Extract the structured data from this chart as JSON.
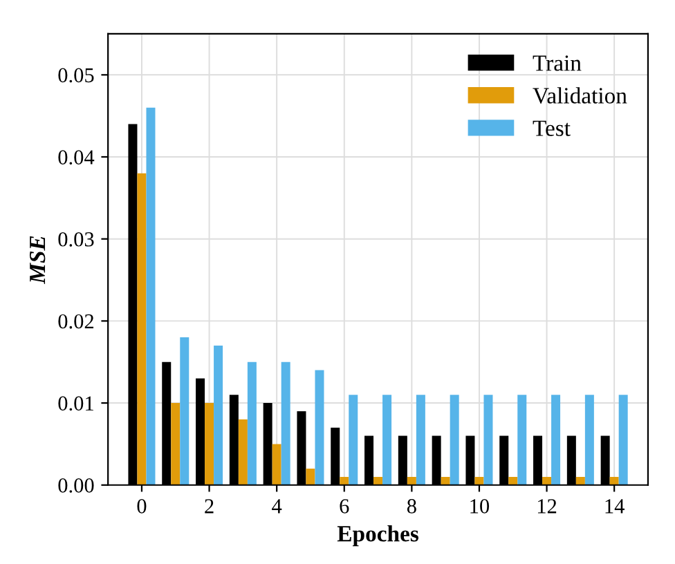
{
  "chart_data": {
    "type": "bar",
    "xlabel": "Epoches",
    "ylabel": "MSE",
    "x": [
      0,
      1,
      2,
      3,
      4,
      5,
      6,
      7,
      8,
      9,
      10,
      11,
      12,
      13,
      14
    ],
    "xlim": [
      -1,
      15
    ],
    "xticks": [
      0,
      2,
      4,
      6,
      8,
      10,
      12,
      14
    ],
    "ylim": [
      0,
      0.055
    ],
    "yticks": [
      {
        "value": 0,
        "label": "0.00"
      },
      {
        "value": 0.01,
        "label": "0.01"
      },
      {
        "value": 0.02,
        "label": "0.02"
      },
      {
        "value": 0.03,
        "label": "0.03"
      },
      {
        "value": 0.04,
        "label": "0.04"
      },
      {
        "value": 0.05,
        "label": "0.05"
      }
    ],
    "grid": true,
    "legend": "top right",
    "series": [
      {
        "name": "Train",
        "color": "#000000",
        "values": [
          0.044,
          0.015,
          0.013,
          0.011,
          0.01,
          0.009,
          0.007,
          0.006,
          0.006,
          0.006,
          0.006,
          0.006,
          0.006,
          0.006,
          0.006
        ]
      },
      {
        "name": "Validation",
        "color": "#e19c0b",
        "values": [
          0.038,
          0.01,
          0.01,
          0.008,
          0.005,
          0.002,
          0.001,
          0.001,
          0.001,
          0.001,
          0.001,
          0.001,
          0.001,
          0.001,
          0.001
        ]
      },
      {
        "name": "Test",
        "color": "#56b4e9",
        "values": [
          0.046,
          0.018,
          0.017,
          0.015,
          0.015,
          0.014,
          0.011,
          0.011,
          0.011,
          0.011,
          0.011,
          0.011,
          0.011,
          0.011,
          0.011
        ]
      }
    ]
  }
}
